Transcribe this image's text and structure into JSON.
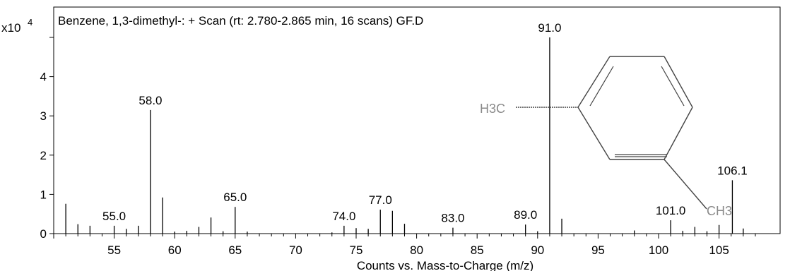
{
  "chart_data": {
    "type": "bar",
    "title": "Benzene, 1,3-dimethyl-: + Scan (rt: 2.780-2.865 min, 16 scans) GF.D",
    "y_multiplier": "x10",
    "y_exponent": "4",
    "xlabel": "Counts vs. Mass-to-Charge (m/z)",
    "ylabel": "",
    "xlim": [
      50.0,
      108.7
    ],
    "ylim": [
      0,
      5.0
    ],
    "x_ticks": [
      "55",
      "60",
      "65",
      "70",
      "75",
      "80",
      "85",
      "90",
      "95",
      "100",
      "105"
    ],
    "y_ticks": [
      "0",
      "1",
      "2",
      "3",
      "4"
    ],
    "peaks": [
      {
        "mz": 51.0,
        "value": 0.76
      },
      {
        "mz": 52.0,
        "value": 0.24
      },
      {
        "mz": 53.0,
        "value": 0.2
      },
      {
        "mz": 55.0,
        "value": 0.2,
        "label": "55.0"
      },
      {
        "mz": 56.0,
        "value": 0.12
      },
      {
        "mz": 57.0,
        "value": 0.2
      },
      {
        "mz": 58.0,
        "value": 3.15,
        "label": "58.0"
      },
      {
        "mz": 59.0,
        "value": 0.92
      },
      {
        "mz": 60.0,
        "value": 0.05
      },
      {
        "mz": 61.0,
        "value": 0.07
      },
      {
        "mz": 62.0,
        "value": 0.17
      },
      {
        "mz": 63.0,
        "value": 0.41
      },
      {
        "mz": 64.0,
        "value": 0.06
      },
      {
        "mz": 65.0,
        "value": 0.68,
        "label": "65.0"
      },
      {
        "mz": 66.0,
        "value": 0.05
      },
      {
        "mz": 73.0,
        "value": 0.03
      },
      {
        "mz": 74.0,
        "value": 0.2,
        "label": "74.0"
      },
      {
        "mz": 75.0,
        "value": 0.14
      },
      {
        "mz": 76.0,
        "value": 0.12
      },
      {
        "mz": 77.0,
        "value": 0.61,
        "label": "77.0"
      },
      {
        "mz": 78.0,
        "value": 0.58
      },
      {
        "mz": 79.0,
        "value": 0.25
      },
      {
        "mz": 83.0,
        "value": 0.15,
        "label": "83.0"
      },
      {
        "mz": 89.0,
        "value": 0.23,
        "label": "89.0"
      },
      {
        "mz": 90.0,
        "value": 0.06
      },
      {
        "mz": 91.0,
        "value": 5.0,
        "label": "91.0"
      },
      {
        "mz": 92.0,
        "value": 0.38
      },
      {
        "mz": 98.0,
        "value": 0.08
      },
      {
        "mz": 101.0,
        "value": 0.34,
        "label": "101.0"
      },
      {
        "mz": 102.0,
        "value": 0.07
      },
      {
        "mz": 103.0,
        "value": 0.17
      },
      {
        "mz": 104.0,
        "value": 0.06
      },
      {
        "mz": 105.0,
        "value": 0.22
      },
      {
        "mz": 106.1,
        "value": 1.36,
        "label": "106.1"
      },
      {
        "mz": 107.0,
        "value": 0.13
      }
    ],
    "structure_labels": {
      "left": "H3C",
      "right": "CH3"
    },
    "colors": {
      "axes": "#000000",
      "peaks": "#000000",
      "structure_text": "#8a8a8a",
      "structure_lines": "#444444"
    }
  }
}
